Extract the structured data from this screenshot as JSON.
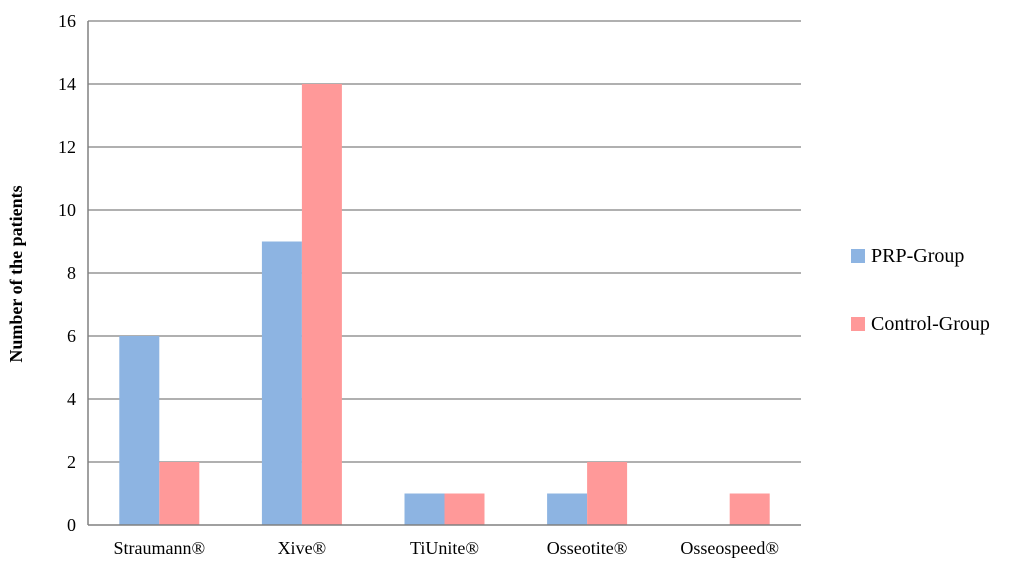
{
  "chart_data": {
    "type": "bar",
    "categories": [
      "Straumann®",
      "Xive®",
      "TiUnite®",
      "Osseotite®",
      "Osseospeed®"
    ],
    "series": [
      {
        "name": "PRP-Group",
        "values": [
          6,
          9,
          1,
          1,
          0
        ],
        "color": "#8DB4E2"
      },
      {
        "name": "Control-Group",
        "values": [
          2,
          14,
          1,
          2,
          1
        ],
        "color": "#FF9999"
      }
    ],
    "xlabel": "",
    "ylabel": "Number of the patients",
    "ylim": [
      0,
      16
    ],
    "yticks": [
      "0",
      "2",
      "4",
      "6",
      "8",
      "10",
      "12",
      "14",
      "16"
    ],
    "grid": true,
    "legend_position": "right"
  }
}
